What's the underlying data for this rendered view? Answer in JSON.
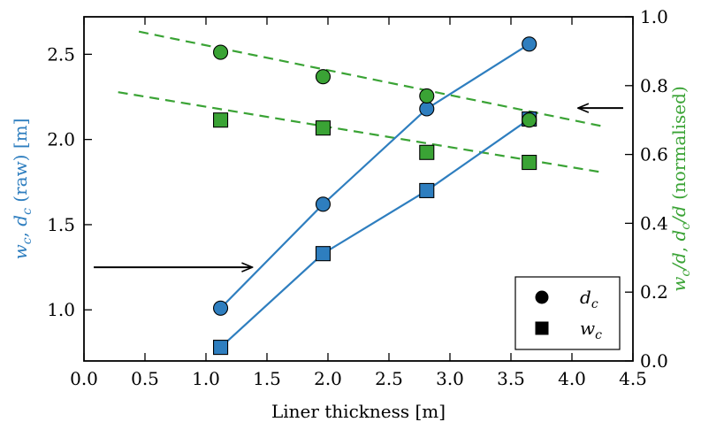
{
  "chart_data": {
    "type": "scatter",
    "xlabel": "Liner thickness [m]",
    "ylabel_left": {
      "parts": [
        {
          "t": "w",
          "i": true
        },
        {
          "t": "c",
          "i": true,
          "sub": true
        },
        {
          "t": ", ",
          "i": false
        },
        {
          "t": "d",
          "i": true
        },
        {
          "t": "c",
          "i": true,
          "sub": true
        },
        {
          "t": " (raw) [m]",
          "i": false
        }
      ]
    },
    "ylabel_right": {
      "parts": [
        {
          "t": "w",
          "i": true
        },
        {
          "t": "c",
          "i": true,
          "sub": true
        },
        {
          "t": "/",
          "i": true
        },
        {
          "t": "d",
          "i": true
        },
        {
          "t": ", ",
          "i": false
        },
        {
          "t": "d",
          "i": true
        },
        {
          "t": "c",
          "i": true,
          "sub": true
        },
        {
          "t": "/",
          "i": true
        },
        {
          "t": "d",
          "i": true
        },
        {
          "t": " (normalised)",
          "i": false
        }
      ]
    },
    "xlim": [
      0.0,
      4.5
    ],
    "ylim_left": [
      0.7,
      2.72
    ],
    "ylim_right": [
      0.0,
      1.0
    ],
    "x_ticks": [
      "0.0",
      "0.5",
      "1.0",
      "1.5",
      "2.0",
      "2.5",
      "3.0",
      "3.5",
      "4.0",
      "4.5"
    ],
    "y_left_ticks": [
      "1.0",
      "1.5",
      "2.0",
      "2.5"
    ],
    "y_right_ticks": [
      "0.0",
      "0.2",
      "0.4",
      "0.6",
      "0.8",
      "1.0"
    ],
    "grid": false,
    "legend_position": "bottom-right",
    "legend": [
      {
        "label": "d_c",
        "base": "d",
        "sub": "c",
        "marker": "circle"
      },
      {
        "label": "w_c",
        "base": "w",
        "sub": "c",
        "marker": "square"
      }
    ],
    "colors": {
      "raw": "#2e7ebf",
      "normalised": "#3aa335",
      "marker_edge": "#000000",
      "arrow": "#000000"
    },
    "series": [
      {
        "axis": "left",
        "quantity": "d_c",
        "marker": "circle",
        "line": "solid",
        "color": "#2e7ebf",
        "x": [
          1.12,
          1.96,
          2.81,
          3.65
        ],
        "y": [
          1.01,
          1.62,
          2.18,
          2.56
        ]
      },
      {
        "axis": "left",
        "quantity": "w_c",
        "marker": "square",
        "line": "solid",
        "color": "#2e7ebf",
        "x": [
          1.12,
          1.96,
          2.81,
          3.65
        ],
        "y": [
          0.78,
          1.33,
          1.7,
          2.12
        ]
      },
      {
        "axis": "right",
        "quantity": "d_c",
        "marker": "circle",
        "line": "none",
        "color": "#3aa335",
        "x": [
          1.12,
          1.96,
          2.81,
          3.65
        ],
        "y": [
          0.897,
          0.826,
          0.77,
          0.7
        ]
      },
      {
        "axis": "right",
        "quantity": "w_c",
        "marker": "square",
        "line": "none",
        "color": "#3aa335",
        "x": [
          1.12,
          1.96,
          2.81,
          3.65
        ],
        "y": [
          0.7,
          0.677,
          0.606,
          0.577
        ]
      }
    ],
    "trend_lines": [
      {
        "axis": "right",
        "quantity": "d_c",
        "style": "dashed",
        "color": "#3aa335",
        "x": [
          0.45,
          4.25
        ],
        "y": [
          0.957,
          0.682
        ]
      },
      {
        "axis": "right",
        "quantity": "w_c",
        "style": "dashed",
        "color": "#3aa335",
        "x": [
          0.28,
          4.25
        ],
        "y": [
          0.781,
          0.548
        ]
      }
    ],
    "annotations": [
      {
        "type": "arrow",
        "points_to": "left",
        "axis": "left",
        "from": [
          0.08,
          1.25
        ],
        "to": [
          1.38,
          1.25
        ]
      },
      {
        "type": "arrow",
        "points_to": "right",
        "axis": "right",
        "from": [
          4.42,
          0.735
        ],
        "to": [
          4.05,
          0.735
        ]
      }
    ]
  }
}
